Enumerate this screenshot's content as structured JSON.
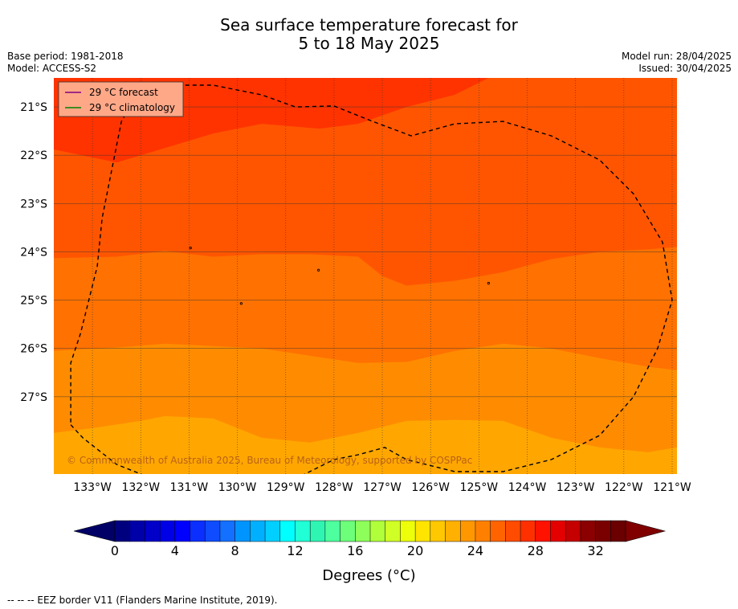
{
  "header": {
    "title_line1": "Sea surface temperature forecast for",
    "title_line2": "5 to 18 May 2025",
    "base_period": "Base period: 1981-2018",
    "model": "Model: ACCESS-S2",
    "model_run": "Model run: 28/04/2025",
    "issued": "Issued: 30/04/2025"
  },
  "chart_data": {
    "type": "heatmap",
    "title": "Sea surface temperature forecast for 5 to 18 May 2025",
    "xlabel": "",
    "ylabel": "",
    "xlim": [
      -133.8,
      -120.9
    ],
    "ylim": [
      -28.6,
      -20.4
    ],
    "grid": true,
    "x_ticks": [
      -133,
      -132,
      -131,
      -130,
      -129,
      -128,
      -127,
      -126,
      -125,
      -124,
      -123,
      -122,
      -121
    ],
    "x_tick_labels": [
      "133°W",
      "132°W",
      "131°W",
      "130°W",
      "129°W",
      "128°W",
      "127°W",
      "126°W",
      "125°W",
      "124°W",
      "123°W",
      "122°W",
      "121°W"
    ],
    "y_ticks": [
      -21,
      -22,
      -23,
      -24,
      -25,
      -26,
      -27
    ],
    "y_tick_labels": [
      "21°S",
      "22°S",
      "23°S",
      "24°S",
      "25°S",
      "26°S",
      "27°S"
    ],
    "bands": [
      {
        "range": "29-30",
        "color": "#ff3300",
        "boundary": [
          [
            -133.8,
            -21.88
          ],
          [
            -132.5,
            -22.15
          ],
          [
            -131.5,
            -21.85
          ],
          [
            -130.5,
            -21.55
          ],
          [
            -129.5,
            -21.35
          ],
          [
            -128.3,
            -21.45
          ],
          [
            -127.5,
            -21.35
          ],
          [
            -126.5,
            -21.0
          ],
          [
            -125.5,
            -20.75
          ],
          [
            -124.8,
            -20.4
          ]
        ]
      },
      {
        "range": "28-29",
        "color": "#ff5500",
        "boundary": [
          [
            -133.8,
            -24.13
          ],
          [
            -132.5,
            -24.1
          ],
          [
            -131.5,
            -23.98
          ],
          [
            -130.5,
            -24.1
          ],
          [
            -129.5,
            -24.05
          ],
          [
            -128.5,
            -24.05
          ],
          [
            -127.5,
            -24.1
          ],
          [
            -127.0,
            -24.5
          ],
          [
            -126.5,
            -24.7
          ],
          [
            -125.5,
            -24.6
          ],
          [
            -124.5,
            -24.42
          ],
          [
            -123.5,
            -24.15
          ],
          [
            -122.5,
            -24.0
          ],
          [
            -121.5,
            -23.95
          ],
          [
            -120.9,
            -23.9
          ]
        ]
      },
      {
        "range": "27-28",
        "color": "#ff7100",
        "boundary": [
          [
            -133.8,
            -26.05
          ],
          [
            -132.5,
            -25.98
          ],
          [
            -131.5,
            -25.9
          ],
          [
            -130.5,
            -25.95
          ],
          [
            -129.5,
            -26.0
          ],
          [
            -128.5,
            -26.15
          ],
          [
            -127.5,
            -26.3
          ],
          [
            -126.5,
            -26.28
          ],
          [
            -125.5,
            -26.05
          ],
          [
            -124.5,
            -25.9
          ],
          [
            -123.5,
            -26.0
          ],
          [
            -122.5,
            -26.2
          ],
          [
            -121.5,
            -26.38
          ],
          [
            -120.9,
            -26.45
          ]
        ]
      },
      {
        "range": "26-27",
        "color": "#ff8c00",
        "boundary": [
          [
            -133.8,
            -27.75
          ],
          [
            -133.0,
            -27.65
          ],
          [
            -132.0,
            -27.5
          ],
          [
            -131.5,
            -27.4
          ],
          [
            -130.5,
            -27.45
          ],
          [
            -130.0,
            -27.65
          ],
          [
            -129.5,
            -27.85
          ],
          [
            -128.5,
            -27.95
          ],
          [
            -127.5,
            -27.75
          ],
          [
            -126.5,
            -27.5
          ],
          [
            -125.5,
            -27.48
          ],
          [
            -124.5,
            -27.5
          ],
          [
            -123.5,
            -27.85
          ],
          [
            -122.5,
            -28.05
          ],
          [
            -121.5,
            -28.15
          ],
          [
            -120.9,
            -28.05
          ]
        ]
      },
      {
        "range": "25-26",
        "color": "#ffa700",
        "boundary": []
      }
    ],
    "eez_border": [
      [
        -133.45,
        -27.58
      ],
      [
        -133.2,
        -27.85
      ],
      [
        -132.5,
        -28.4
      ],
      [
        -131.5,
        -28.8
      ],
      [
        -130.5,
        -29.0
      ],
      [
        -129.7,
        -28.95
      ],
      [
        -129.0,
        -28.8
      ],
      [
        -128.5,
        -28.55
      ],
      [
        -128.0,
        -28.3
      ],
      [
        -127.5,
        -28.2
      ],
      [
        -126.95,
        -28.05
      ],
      [
        -126.5,
        -28.3
      ],
      [
        -125.5,
        -28.55
      ],
      [
        -124.5,
        -28.55
      ],
      [
        -123.5,
        -28.3
      ],
      [
        -122.5,
        -27.8
      ],
      [
        -121.8,
        -27.0
      ],
      [
        -121.3,
        -26.0
      ],
      [
        -121.0,
        -25.0
      ],
      [
        -121.2,
        -23.8
      ],
      [
        -121.8,
        -22.8
      ],
      [
        -122.5,
        -22.1
      ],
      [
        -123.5,
        -21.6
      ],
      [
        -124.5,
        -21.3
      ],
      [
        -125.5,
        -21.35
      ],
      [
        -126.4,
        -21.6
      ],
      [
        -127.2,
        -21.3
      ],
      [
        -128.0,
        -20.98
      ],
      [
        -128.8,
        -21.0
      ],
      [
        -129.5,
        -20.75
      ],
      [
        -130.5,
        -20.55
      ],
      [
        -131.5,
        -20.55
      ],
      [
        -132.0,
        -20.6
      ],
      [
        -132.4,
        -21.3
      ],
      [
        -132.6,
        -22.3
      ],
      [
        -132.8,
        -23.3
      ],
      [
        -132.9,
        -24.3
      ],
      [
        -133.1,
        -25.1
      ],
      [
        -133.25,
        -25.7
      ],
      [
        -133.45,
        -26.3
      ],
      [
        -133.45,
        -27.58
      ]
    ],
    "islands": [
      [
        -130.97,
        -23.92
      ],
      [
        -128.32,
        -24.38
      ],
      [
        -129.92,
        -25.07
      ],
      [
        -124.8,
        -24.65
      ]
    ],
    "legend": {
      "placement": "top-left",
      "entries": [
        {
          "label": "29 °C  forecast",
          "color": "#800080"
        },
        {
          "label": "29 °C  climatology",
          "color": "#008000"
        }
      ],
      "background": "#ffa888"
    },
    "copyright": "© Commonwealth of Australia 2025, Bureau of Meteorology, supported by COSPPac",
    "colorbar": {
      "min": 0,
      "max": 34,
      "step": 1,
      "tick_values": [
        0,
        4,
        8,
        12,
        16,
        20,
        24,
        28,
        32
      ],
      "tick_labels": [
        "0",
        "4",
        "8",
        "12",
        "16",
        "20",
        "24",
        "28",
        "32"
      ],
      "under_color": "#000066",
      "over_color": "#800000",
      "colors": [
        "#00007f",
        "#0000a8",
        "#0000c8",
        "#0000e6",
        "#0000ff",
        "#0a2fff",
        "#0f4cff",
        "#1470ff",
        "#0094ff",
        "#00b0ff",
        "#00cfff",
        "#00ffff",
        "#20ffd5",
        "#2ff5b3",
        "#4dff9e",
        "#6dff7a",
        "#8eff5a",
        "#b0ff3a",
        "#d0ff26",
        "#eeff0a",
        "#ffe400",
        "#ffc800",
        "#ffb000",
        "#ff9800",
        "#ff8000",
        "#ff6400",
        "#ff4c00",
        "#ff3000",
        "#ff1200",
        "#e40000",
        "#c40000",
        "#8b0000",
        "#7a0000",
        "#6a0000"
      ],
      "unit_label": "Degrees (°C)"
    }
  },
  "footnote": "-- -- -- EEZ border V11 (Flanders Marine Institute, 2019)."
}
